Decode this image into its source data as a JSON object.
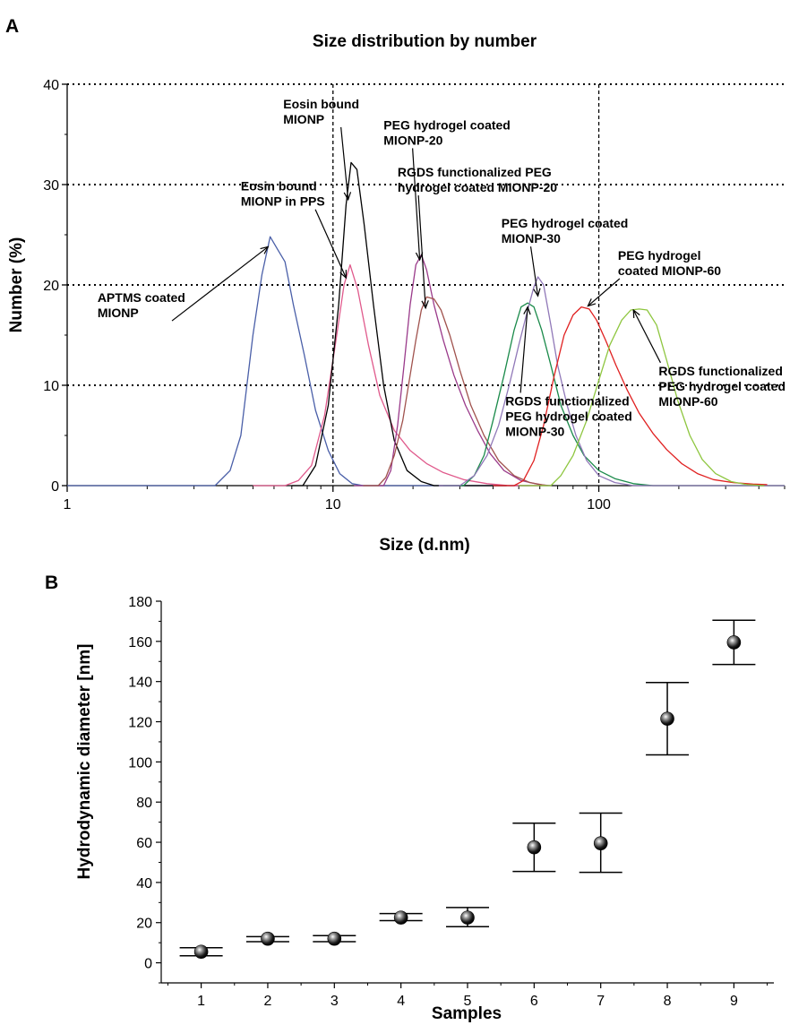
{
  "figure": {
    "panel_a_letter": "A",
    "panel_b_letter": "B"
  },
  "chart_data": [
    {
      "type": "line",
      "title": "Size distribution by number",
      "xlabel": "Size (d.nm)",
      "ylabel": "Number (%)",
      "xscale": "log",
      "xlim": [
        1,
        500
      ],
      "ylim": [
        0,
        40
      ],
      "xticks": [
        1,
        10,
        100
      ],
      "xtick_labels": [
        "1",
        "10",
        "100"
      ],
      "yticks": [
        0,
        10,
        20,
        30,
        40
      ],
      "ytick_labels": [
        "0",
        "10",
        "20",
        "30",
        "40"
      ],
      "grid": {
        "horizontal_dotted": [
          10,
          20,
          30,
          40
        ],
        "vertical_dashed": [
          10,
          100
        ]
      },
      "series": [
        {
          "color": "#4a5fa8",
          "points": [
            [
              1,
              0
            ],
            [
              3.6,
              0
            ],
            [
              4.1,
              1.5
            ],
            [
              4.5,
              5
            ],
            [
              5.0,
              15
            ],
            [
              5.4,
              21
            ],
            [
              5.8,
              24.8
            ],
            [
              6.2,
              23.5
            ],
            [
              6.6,
              22.3
            ],
            [
              7.1,
              18
            ],
            [
              7.8,
              13
            ],
            [
              8.6,
              7.5
            ],
            [
              9.6,
              3.5
            ],
            [
              10.6,
              1.2
            ],
            [
              11.8,
              0.2
            ],
            [
              13,
              0
            ],
            [
              55,
              0
            ]
          ]
        },
        {
          "color": "#e05a8c",
          "points": [
            [
              5,
              0
            ],
            [
              6.6,
              0
            ],
            [
              7.4,
              0.5
            ],
            [
              8.3,
              2
            ],
            [
              9.3,
              7
            ],
            [
              10.2,
              14
            ],
            [
              11.0,
              20
            ],
            [
              11.6,
              22
            ],
            [
              12.4,
              19.5
            ],
            [
              13.6,
              14
            ],
            [
              15,
              9
            ],
            [
              17,
              5.5
            ],
            [
              19.5,
              3.5
            ],
            [
              22.5,
              2.2
            ],
            [
              26,
              1.3
            ],
            [
              31,
              0.6
            ],
            [
              38,
              0.2
            ],
            [
              46,
              0
            ],
            [
              60,
              0
            ]
          ]
        },
        {
          "color": "#000000",
          "points": [
            [
              7,
              0
            ],
            [
              7.7,
              0
            ],
            [
              8.6,
              2
            ],
            [
              9.6,
              8
            ],
            [
              10.5,
              18
            ],
            [
              11.2,
              28
            ],
            [
              11.7,
              32.2
            ],
            [
              12.3,
              31.5
            ],
            [
              13.1,
              26
            ],
            [
              14.2,
              18
            ],
            [
              15.5,
              10
            ],
            [
              17,
              4.5
            ],
            [
              19,
              1.5
            ],
            [
              21.5,
              0.4
            ],
            [
              24,
              0
            ],
            [
              45,
              0
            ]
          ]
        },
        {
          "color": "#9a3a8a",
          "points": [
            [
              12,
              0
            ],
            [
              15.5,
              0
            ],
            [
              16.5,
              1.5
            ],
            [
              17.5,
              6
            ],
            [
              18.5,
              12
            ],
            [
              19.5,
              18
            ],
            [
              20.5,
              22
            ],
            [
              21.5,
              23
            ],
            [
              22.5,
              21.5
            ],
            [
              24,
              18
            ],
            [
              26,
              14.5
            ],
            [
              28.5,
              11
            ],
            [
              31.5,
              8
            ],
            [
              35,
              5.5
            ],
            [
              39,
              3.2
            ],
            [
              44,
              1.5
            ],
            [
              51,
              0.5
            ],
            [
              60,
              0.1
            ],
            [
              66,
              0
            ]
          ]
        },
        {
          "color": "#a0524d",
          "points": [
            [
              13,
              0
            ],
            [
              14.8,
              0
            ],
            [
              15.8,
              0.8
            ],
            [
              17,
              3
            ],
            [
              18.3,
              6.5
            ],
            [
              19.5,
              11
            ],
            [
              20.5,
              14.5
            ],
            [
              21.5,
              17.5
            ],
            [
              22.5,
              18.8
            ],
            [
              24,
              18.6
            ],
            [
              25.5,
              17.5
            ],
            [
              27.5,
              15
            ],
            [
              30,
              11.5
            ],
            [
              33,
              8
            ],
            [
              37,
              5
            ],
            [
              42,
              2.5
            ],
            [
              48,
              1
            ],
            [
              55,
              0.3
            ],
            [
              64,
              0
            ]
          ]
        },
        {
          "color": "#1a8a4a",
          "points": [
            [
              26,
              0
            ],
            [
              31,
              0
            ],
            [
              34,
              1
            ],
            [
              37,
              3
            ],
            [
              40,
              6.5
            ],
            [
              44,
              11
            ],
            [
              48,
              15.5
            ],
            [
              51,
              17.8
            ],
            [
              54,
              18.2
            ],
            [
              57,
              17.8
            ],
            [
              61,
              15.5
            ],
            [
              66,
              12
            ],
            [
              72,
              8
            ],
            [
              80,
              5
            ],
            [
              88,
              3
            ],
            [
              100,
              1.5
            ],
            [
              115,
              0.7
            ],
            [
              135,
              0.2
            ],
            [
              160,
              0
            ],
            [
              500,
              0
            ]
          ]
        },
        {
          "color": "#9078b8",
          "points": [
            [
              25,
              0
            ],
            [
              30,
              0
            ],
            [
              34,
              1
            ],
            [
              38,
              3
            ],
            [
              42,
              6
            ],
            [
              46,
              10
            ],
            [
              50,
              14
            ],
            [
              54,
              17.5
            ],
            [
              57,
              19.8
            ],
            [
              59,
              20.8
            ],
            [
              62,
              20
            ],
            [
              66,
              16
            ],
            [
              70,
              12
            ],
            [
              76,
              8
            ],
            [
              82,
              5
            ],
            [
              90,
              2.5
            ],
            [
              100,
              1
            ],
            [
              115,
              0.3
            ],
            [
              135,
              0
            ],
            [
              500,
              0
            ]
          ]
        },
        {
          "color": "#e02020",
          "points": [
            [
              40,
              0
            ],
            [
              48,
              0
            ],
            [
              52,
              0.5
            ],
            [
              57,
              2.5
            ],
            [
              62,
              6
            ],
            [
              68,
              11
            ],
            [
              74,
              15
            ],
            [
              80,
              17
            ],
            [
              86,
              17.8
            ],
            [
              92,
              17.6
            ],
            [
              98,
              16.5
            ],
            [
              106,
              14.5
            ],
            [
              116,
              12
            ],
            [
              128,
              9.5
            ],
            [
              142,
              7.2
            ],
            [
              160,
              5.2
            ],
            [
              180,
              3.6
            ],
            [
              205,
              2.2
            ],
            [
              235,
              1.2
            ],
            [
              270,
              0.6
            ],
            [
              320,
              0.3
            ],
            [
              380,
              0.15
            ],
            [
              430,
              0.1
            ]
          ]
        },
        {
          "color": "#8ec63f",
          "points": [
            [
              50,
              0
            ],
            [
              66,
              0
            ],
            [
              72,
              1
            ],
            [
              80,
              3
            ],
            [
              90,
              6.5
            ],
            [
              100,
              10.5
            ],
            [
              110,
              14
            ],
            [
              122,
              16.5
            ],
            [
              132,
              17.5
            ],
            [
              142,
              17.6
            ],
            [
              152,
              17.5
            ],
            [
              165,
              16
            ],
            [
              180,
              12.5
            ],
            [
              198,
              8.5
            ],
            [
              220,
              5
            ],
            [
              245,
              2.6
            ],
            [
              275,
              1.2
            ],
            [
              315,
              0.4
            ],
            [
              360,
              0.1
            ],
            [
              420,
              0
            ]
          ]
        }
      ],
      "annotations": [
        {
          "lines": [
            "Eosin bound",
            "MIONP"
          ],
          "label_at": [
            6.5,
            37.6
          ],
          "arrow_to": [
            11.4,
            28.5
          ]
        },
        {
          "lines": [
            "PEG hydrogel coated",
            "MIONP-20"
          ],
          "label_at": [
            15.5,
            35.5
          ],
          "arrow_to": [
            21.2,
            22.5
          ]
        },
        {
          "lines": [
            "Eosin bound",
            "MIONP in PPS"
          ],
          "label_at": [
            4.5,
            29.4
          ],
          "arrow_to": [
            11.2,
            20.7
          ]
        },
        {
          "lines": [
            "RGDS functionalized PEG",
            "hydrogel coated MIONP-20"
          ],
          "label_at": [
            17.5,
            30.8
          ],
          "arrow_to": [
            22.3,
            17.7
          ]
        },
        {
          "lines": [
            "PEG hydrogel coated",
            "MIONP-30"
          ],
          "label_at": [
            43,
            25.7
          ],
          "arrow_to": [
            59,
            18.9
          ]
        },
        {
          "lines": [
            "PEG hydrogel",
            "coated MIONP-60"
          ],
          "label_at": [
            118,
            22.5
          ],
          "arrow_to": [
            91,
            17.9
          ]
        },
        {
          "lines": [
            "APTMS coated",
            "MIONP"
          ],
          "label_at": [
            1.3,
            18.3
          ],
          "arrow_to": [
            5.7,
            23.8
          ]
        },
        {
          "lines": [
            "RGDS functionalized",
            "PEG hydrogel coated",
            "MIONP-30"
          ],
          "label_at": [
            44.5,
            8.0
          ],
          "arrow_to": [
            54,
            17.8
          ]
        },
        {
          "lines": [
            "RGDS functionalized",
            "PEG hydrogel coated",
            "MIONP-60"
          ],
          "label_at": [
            168,
            11.0
          ],
          "arrow_to": [
            135,
            17.5
          ]
        }
      ]
    },
    {
      "type": "scatter",
      "title": "",
      "xlabel": "Samples",
      "ylabel": "Hydrodynamic diameter [nm]",
      "xlim": [
        0.4,
        9.6
      ],
      "ylim": [
        -10,
        180
      ],
      "xticks": [
        1,
        2,
        3,
        4,
        5,
        6,
        7,
        8,
        9
      ],
      "yticks": [
        0,
        20,
        40,
        60,
        80,
        100,
        120,
        140,
        160,
        180
      ],
      "points": [
        {
          "x": 1,
          "y": 5.5,
          "err_low": 3.5,
          "err_high": 7.5
        },
        {
          "x": 2,
          "y": 12,
          "err_low": 10.5,
          "err_high": 13
        },
        {
          "x": 3,
          "y": 12,
          "err_low": 10.5,
          "err_high": 13.5
        },
        {
          "x": 4,
          "y": 22.5,
          "err_low": 21,
          "err_high": 24.5
        },
        {
          "x": 5,
          "y": 22.5,
          "err_low": 18,
          "err_high": 27.5
        },
        {
          "x": 6,
          "y": 57.5,
          "err_low": 45.5,
          "err_high": 69.5
        },
        {
          "x": 7,
          "y": 59.5,
          "err_low": 45,
          "err_high": 74.5
        },
        {
          "x": 8,
          "y": 121.5,
          "err_low": 103.5,
          "err_high": 139.5
        },
        {
          "x": 9,
          "y": 159.5,
          "err_low": 148.5,
          "err_high": 170.5
        }
      ]
    }
  ]
}
